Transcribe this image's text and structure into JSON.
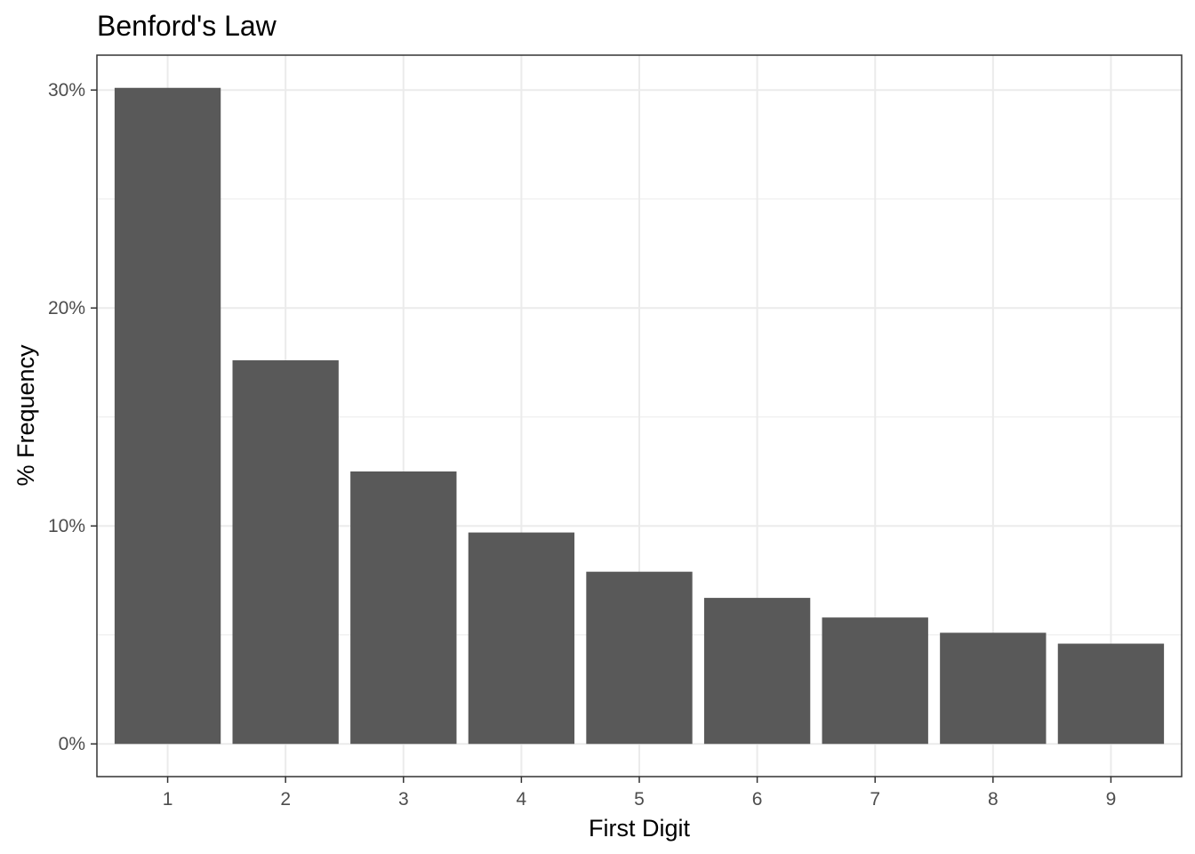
{
  "chart_data": {
    "type": "bar",
    "title": "Benford's Law",
    "xlabel": "First Digit",
    "ylabel": "% Frequency",
    "categories": [
      "1",
      "2",
      "3",
      "4",
      "5",
      "6",
      "7",
      "8",
      "9"
    ],
    "values": [
      0.301,
      0.176,
      0.125,
      0.097,
      0.079,
      0.067,
      0.058,
      0.051,
      0.046
    ],
    "ylim": [
      -0.015,
      0.316
    ],
    "y_ticks": [
      0,
      0.1,
      0.2,
      0.3
    ],
    "y_tick_labels": [
      "0%",
      "10%",
      "20%",
      "30%"
    ],
    "y_minor_ticks": [
      0.05,
      0.15,
      0.25
    ],
    "grid": true,
    "legend": "none",
    "bar_color": "#595959",
    "grid_color": "#ebebeb",
    "border_color": "#333333"
  }
}
